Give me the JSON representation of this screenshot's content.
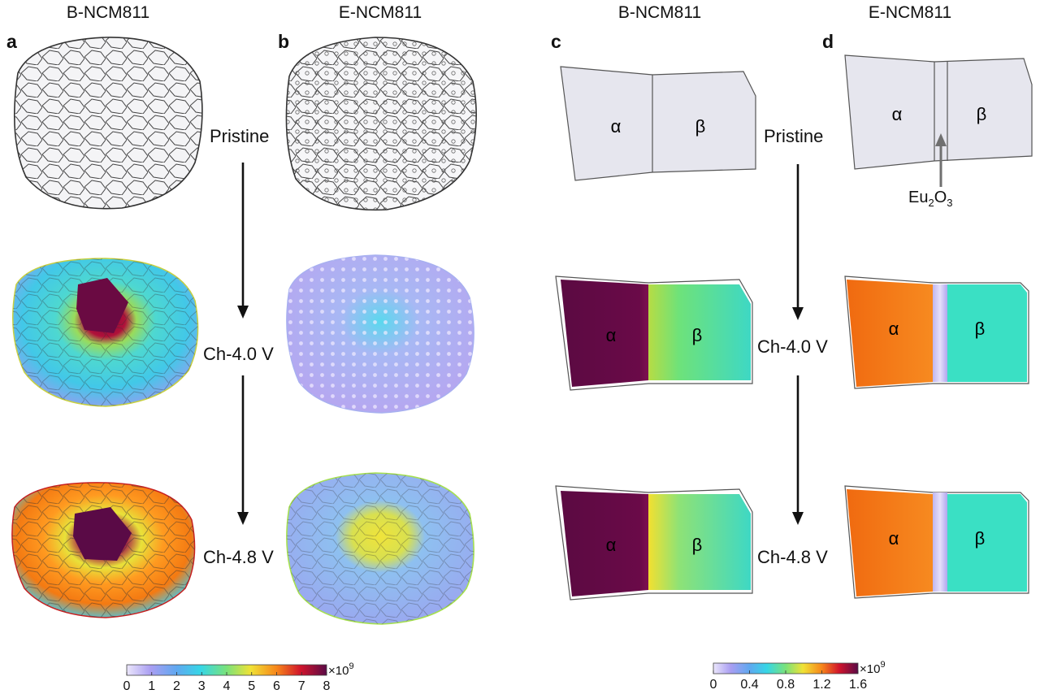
{
  "columns": {
    "a": {
      "letter": "a",
      "title": "B-NCM811"
    },
    "b": {
      "letter": "b",
      "title": "E-NCM811"
    },
    "c": {
      "letter": "c",
      "title": "B-NCM811"
    },
    "d": {
      "letter": "d",
      "title": "E-NCM811"
    }
  },
  "stages_left": [
    "Pristine",
    "Ch-4.0 V",
    "Ch-4.8 V"
  ],
  "stages_right": [
    "Pristine",
    "Ch-4.0 V",
    "Ch-4.8 V"
  ],
  "phases": {
    "alpha": "α",
    "beta": "β"
  },
  "eu_label": {
    "base": "Eu",
    "sub1": "2",
    "mid": "O",
    "sub2": "3"
  },
  "colorbar_left": {
    "ticks": [
      "0",
      "1",
      "2",
      "3",
      "4",
      "5",
      "6",
      "7",
      "8"
    ],
    "multiplier": "×10",
    "exponent": "9",
    "min": 0,
    "max": 8
  },
  "colorbar_right": {
    "ticks": [
      "0",
      "0.4",
      "0.8",
      "1.2",
      "1.6"
    ],
    "multiplier": "×10",
    "exponent": "9",
    "min": 0,
    "max": 1.6
  },
  "colors": {
    "panel_fill": "#e6e6ee",
    "edge": "#555555",
    "arrow": "#111111",
    "eu_arrow": "#707070"
  }
}
